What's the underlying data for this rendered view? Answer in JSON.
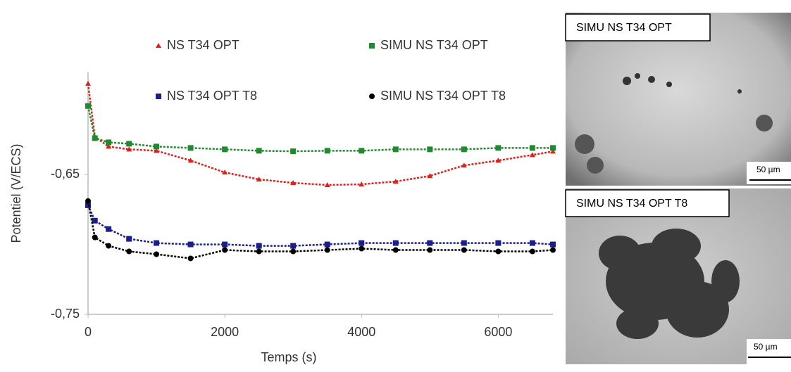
{
  "chart_data": {
    "type": "scatter",
    "x_label": "Temps (s)",
    "y_label": "Potentiel (V/ECS)",
    "x": [
      0,
      100,
      300,
      600,
      1000,
      1500,
      2000,
      2500,
      3000,
      3500,
      4000,
      4500,
      5000,
      5500,
      6000,
      6500,
      6800
    ],
    "xlim": [
      0,
      6800
    ],
    "xticks": [
      0,
      2000,
      4000,
      6000
    ],
    "ylim": [
      -0.75,
      -0.577
    ],
    "yticks": [
      {
        "value": -0.75,
        "label": "-0,75"
      },
      {
        "value": -0.65,
        "label": "-0,65"
      }
    ],
    "series": [
      {
        "name": "NS T34 OPT",
        "color": "#e0201b",
        "marker": "triangle",
        "values": [
          -0.585,
          -0.623,
          -0.63,
          -0.632,
          -0.633,
          -0.64,
          -0.6485,
          -0.6535,
          -0.656,
          -0.6575,
          -0.657,
          -0.655,
          -0.651,
          -0.6435,
          -0.64,
          -0.636,
          -0.6335
        ]
      },
      {
        "name": "SIMU NS T34 OPT",
        "color": "#1f8a2e",
        "marker": "square",
        "values": [
          -0.601,
          -0.624,
          -0.627,
          -0.628,
          -0.63,
          -0.631,
          -0.632,
          -0.633,
          -0.6334,
          -0.633,
          -0.633,
          -0.632,
          -0.632,
          -0.632,
          -0.631,
          -0.631,
          -0.631
        ]
      },
      {
        "name": "NS T34 OPT T8",
        "color": "#1b1f8a",
        "marker": "square",
        "values": [
          -0.672,
          -0.683,
          -0.689,
          -0.696,
          -0.699,
          -0.7,
          -0.7,
          -0.701,
          -0.701,
          -0.7,
          -0.699,
          -0.699,
          -0.699,
          -0.699,
          -0.699,
          -0.699,
          -0.7
        ]
      },
      {
        "name": "SIMU NS T34 OPT T8",
        "color": "#000000",
        "marker": "circle",
        "values": [
          -0.669,
          -0.695,
          -0.701,
          -0.705,
          -0.707,
          -0.71,
          -0.704,
          -0.705,
          -0.705,
          -0.704,
          -0.703,
          -0.704,
          -0.704,
          -0.704,
          -0.705,
          -0.705,
          -0.704
        ]
      }
    ]
  },
  "images": [
    {
      "label": "SIMU NS T34 OPT",
      "scale": "50 µm"
    },
    {
      "label": "SIMU NS T34 OPT T8",
      "scale": "50 µm"
    }
  ]
}
